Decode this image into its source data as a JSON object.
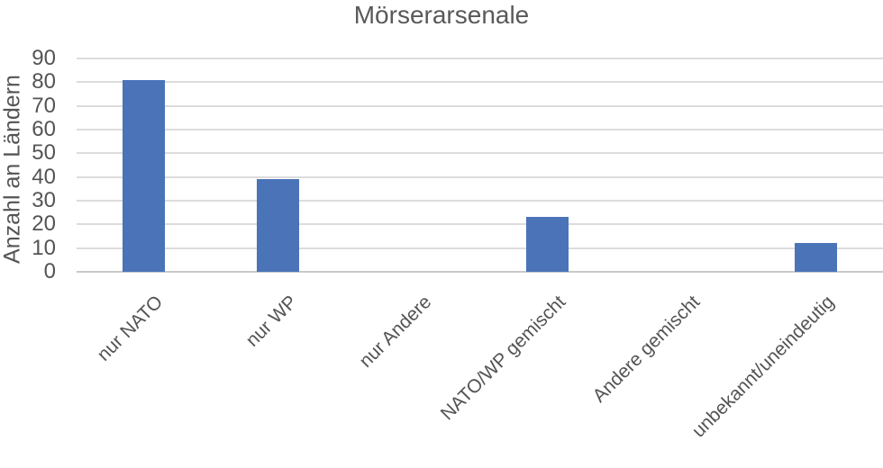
{
  "chart_data": {
    "type": "bar",
    "title": "Mörserarsenale",
    "ylabel": "Anzahl an Ländern",
    "xlabel": "",
    "categories": [
      "nur NATO",
      "nur WP",
      "nur Andere",
      "NATO/WP gemischt",
      "Andere gemischt",
      "unbekannt/uneindeutig"
    ],
    "values": [
      81,
      39,
      0,
      23,
      0,
      12
    ],
    "ylim": [
      0,
      90
    ],
    "yticks": [
      0,
      10,
      20,
      30,
      40,
      50,
      60,
      70,
      80,
      90
    ],
    "grid": true,
    "legend": false,
    "colors": {
      "bar": "#4a73b8",
      "gridline": "#dcdcdc",
      "axis_line": "#c9c9c9",
      "title_text": "#595959",
      "label_text": "#545454"
    }
  }
}
